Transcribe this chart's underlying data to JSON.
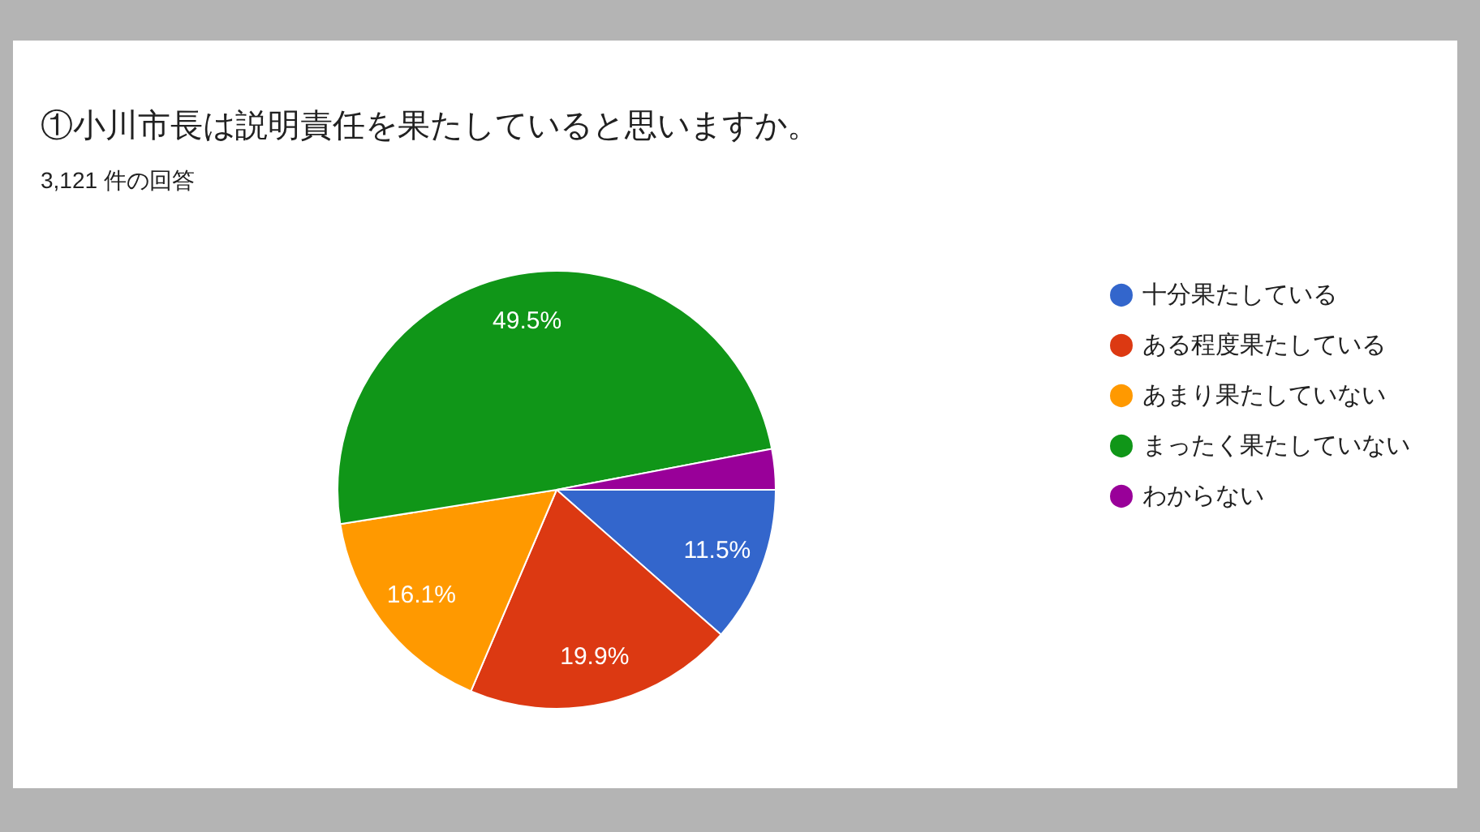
{
  "chart_data": {
    "type": "pie",
    "title": "①小川市長は説明責任を果たしていると思いますか。",
    "subtitle": "3,121 件の回答",
    "categories": [
      "十分果たしている",
      "ある程度果たしている",
      "あまり果たしていない",
      "まったく果たしていない",
      "わからない"
    ],
    "values": [
      11.5,
      19.9,
      16.1,
      49.5,
      3
    ],
    "colors": [
      "#3366cc",
      "#dc3912",
      "#ff9900",
      "#109618",
      "#990099"
    ],
    "value_labels": [
      "11.5%",
      "19.9%",
      "16.1%",
      "49.5%",
      null
    ],
    "legend": "right"
  }
}
